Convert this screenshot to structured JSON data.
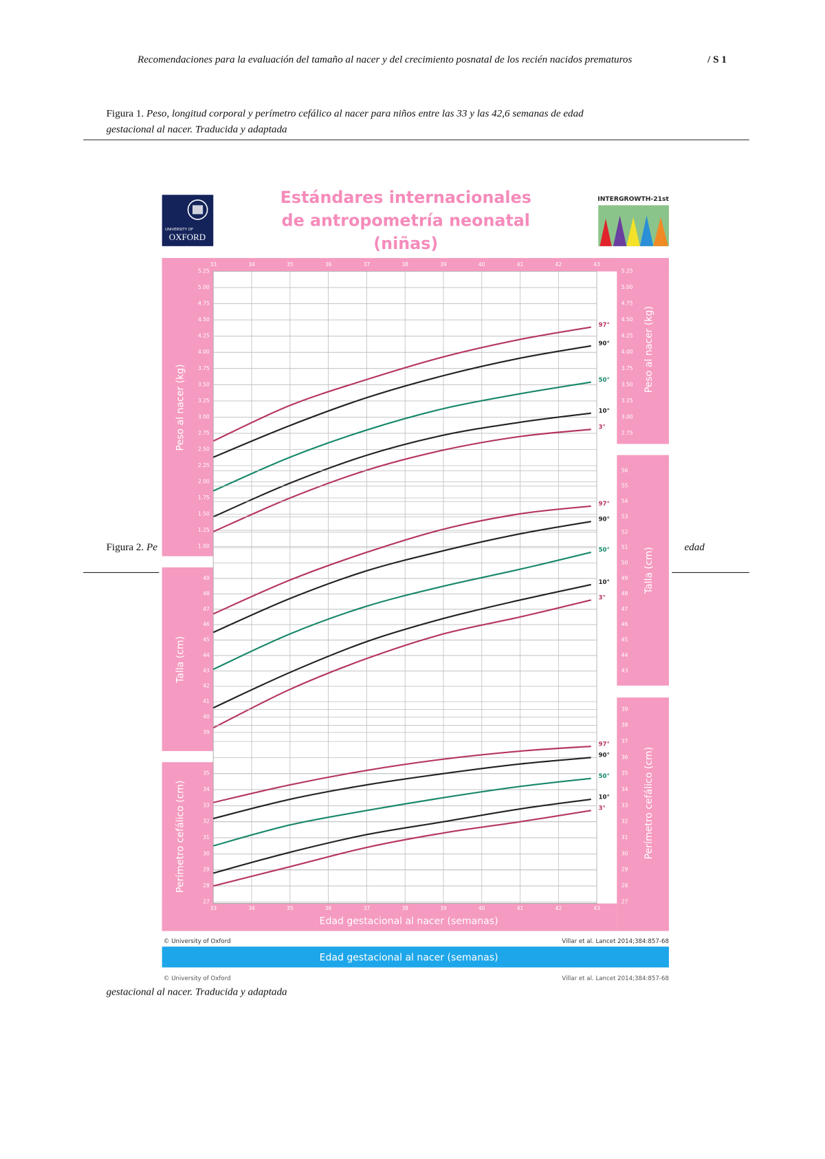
{
  "header": {
    "title": "Recomendaciones para la evaluación del tamaño al nacer y del crecimiento posnatal de los recién nacidos prematuros",
    "page": "/ S 1"
  },
  "figure_1": {
    "label": "Figura 1.",
    "caption": [
      "Peso, longitud corporal y perímetro cefálico al nacer para niños entre las 33 y las 42,6 semanas de edad",
      "gestacional al nacer. Traducida y adaptada"
    ]
  },
  "figure_2": {
    "label": "Figura 2.",
    "caption": [
      "Pe",
      "edad",
      "gestacional al nacer. Traducida y adaptada"
    ]
  },
  "chart": {
    "title": [
      "Estándares internacionales",
      "de antropometría neonatal",
      "(niñas)"
    ],
    "logo_oxford": [
      "UNIVERSITY OF",
      "OXFORD"
    ],
    "logo_intergrowth": "INTERGROWTH-21st",
    "x_label": "Edad gestacional al nacer (semanas)",
    "copyright": "© University of Oxford",
    "citation": "Villar et al. Lancet 2014;384:857-68"
  },
  "chart_data": [
    {
      "type": "line",
      "y_label": "Peso al nacer (kg)",
      "xlim": [
        33,
        43
      ],
      "xticks": [
        33,
        34,
        35,
        36,
        37,
        38,
        39,
        40,
        41,
        42,
        43
      ],
      "ylim": [
        1,
        5.25
      ],
      "yticks": [
        {
          "value": 1,
          "label": "1.00"
        },
        1.25,
        {
          "value": 1.5,
          "label": "1.50"
        },
        1.75,
        {
          "value": 2,
          "label": "2.00"
        },
        2.25,
        {
          "value": 2.5,
          "label": "2.50"
        },
        2.75,
        {
          "value": 3,
          "label": "3.00"
        },
        3.25,
        {
          "value": 3.5,
          "label": "3.50"
        },
        3.75,
        {
          "value": 4,
          "label": "4.00"
        },
        4.25,
        {
          "value": 4.5,
          "label": "4.50"
        },
        4.75,
        {
          "value": 5,
          "label": "5.00"
        },
        5.25
      ],
      "y2ticks": [
        2.75,
        {
          "value": 3,
          "label": "3.00"
        },
        3.25,
        {
          "value": 3.5,
          "label": "3.50"
        },
        3.75,
        {
          "value": 4,
          "label": "4.00"
        },
        4.25,
        {
          "value": 4.5,
          "label": "4.50"
        },
        4.75,
        {
          "value": 5,
          "label": "5.00"
        },
        5.25
      ],
      "grid": true,
      "x": [
        33,
        35,
        37,
        39,
        41,
        42.85
      ],
      "series": [
        {
          "name": "97°",
          "color": "#b5365e",
          "values": [
            2.63,
            3.18,
            3.58,
            3.93,
            4.2,
            4.39
          ]
        },
        {
          "name": "90°",
          "color": "#222222",
          "values": [
            2.38,
            2.87,
            3.3,
            3.64,
            3.91,
            4.1
          ]
        },
        {
          "name": "50°",
          "color": "#17876a",
          "values": [
            1.86,
            2.38,
            2.8,
            3.13,
            3.36,
            3.54
          ]
        },
        {
          "name": "10°",
          "color": "#222222",
          "values": [
            1.46,
            1.98,
            2.41,
            2.72,
            2.92,
            3.06
          ]
        },
        {
          "name": "3°",
          "color": "#b5365e",
          "values": [
            1.23,
            1.75,
            2.18,
            2.49,
            2.7,
            2.81
          ]
        }
      ]
    },
    {
      "type": "line",
      "y_label": "Talla (cm)",
      "xlim": [
        33,
        43
      ],
      "ylim": [
        39,
        56
      ],
      "yticks": [
        39,
        40,
        41,
        42,
        43,
        44,
        45,
        46,
        47,
        48,
        49
      ],
      "y2ticks": [
        43,
        44,
        45,
        46,
        47,
        48,
        49,
        50,
        51,
        52,
        53,
        54,
        55,
        56
      ],
      "grid": true,
      "x": [
        33,
        35,
        37,
        39,
        41,
        42.85
      ],
      "series": [
        {
          "name": "97°",
          "color": "#b5365e",
          "values": [
            46.7,
            48.9,
            50.7,
            52.2,
            53.2,
            53.7
          ]
        },
        {
          "name": "90°",
          "color": "#222222",
          "values": [
            45.5,
            47.7,
            49.5,
            50.8,
            51.9,
            52.7
          ]
        },
        {
          "name": "50°",
          "color": "#17876a",
          "values": [
            43.1,
            45.4,
            47.2,
            48.5,
            49.6,
            50.7
          ]
        },
        {
          "name": "10°",
          "color": "#222222",
          "values": [
            40.6,
            42.9,
            44.9,
            46.4,
            47.6,
            48.6
          ]
        },
        {
          "name": "3°",
          "color": "#b5365e",
          "values": [
            39.3,
            41.8,
            43.8,
            45.4,
            46.5,
            47.6
          ]
        }
      ]
    },
    {
      "type": "line",
      "y_label": "Perímetro cefálico (cm)",
      "xlim": [
        33,
        43
      ],
      "xticks": [
        33,
        34,
        35,
        36,
        37,
        38,
        39,
        40,
        41,
        42,
        43
      ],
      "ylim": [
        27,
        39
      ],
      "yticks": [
        27,
        28,
        29,
        30,
        31,
        32,
        33,
        34,
        35
      ],
      "y2ticks": [
        27,
        28,
        29,
        30,
        31,
        32,
        33,
        34,
        35,
        36,
        37,
        38,
        39
      ],
      "grid": true,
      "x": [
        33,
        35,
        37,
        39,
        41,
        42.85
      ],
      "series": [
        {
          "name": "97°",
          "color": "#b5365e",
          "values": [
            33.2,
            34.3,
            35.2,
            35.9,
            36.4,
            36.7
          ]
        },
        {
          "name": "90°",
          "color": "#222222",
          "values": [
            32.2,
            33.4,
            34.3,
            35.0,
            35.6,
            36.0
          ]
        },
        {
          "name": "50°",
          "color": "#17876a",
          "values": [
            30.5,
            31.8,
            32.7,
            33.5,
            34.2,
            34.7
          ]
        },
        {
          "name": "10°",
          "color": "#222222",
          "values": [
            28.8,
            30.1,
            31.2,
            32.0,
            32.8,
            33.4
          ]
        },
        {
          "name": "3°",
          "color": "#b5365e",
          "values": [
            28.0,
            29.2,
            30.4,
            31.3,
            32.0,
            32.7
          ]
        }
      ]
    }
  ]
}
